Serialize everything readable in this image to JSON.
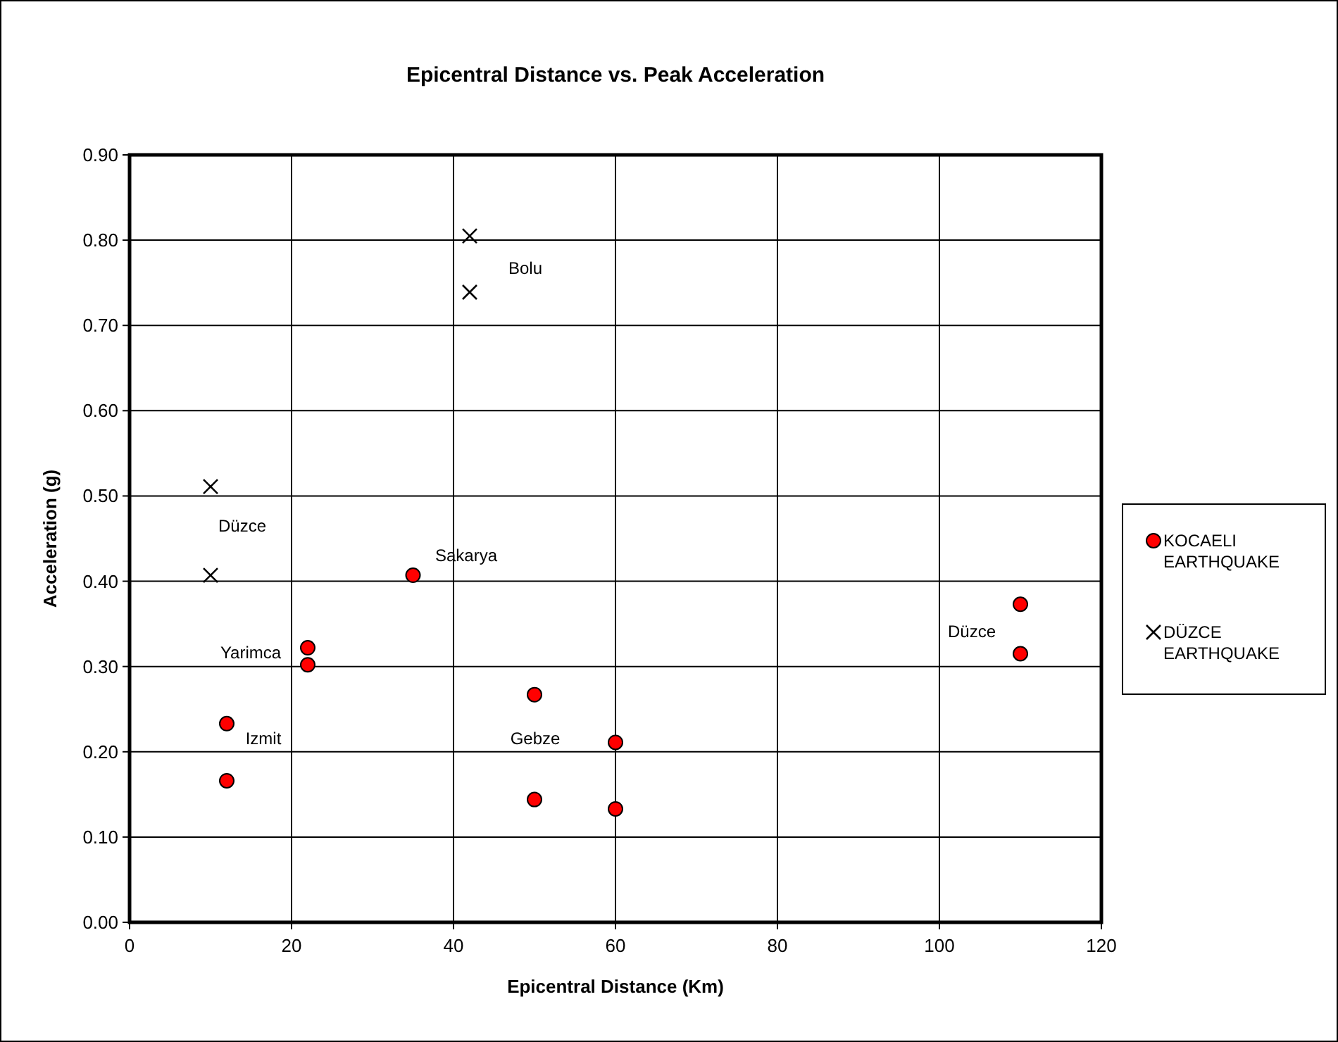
{
  "chart_data": {
    "type": "scatter",
    "title": "Epicentral Distance vs. Peak Acceleration",
    "xlabel": "Epicentral Distance (Km)",
    "ylabel": "Acceleration (g)",
    "series": [
      {
        "name": "KOCAELI EARTHQUAKE",
        "color": "#ff0000",
        "marker": "circle",
        "x": [
          12,
          12,
          22,
          22,
          35,
          50,
          50,
          60,
          60,
          110,
          110
        ],
        "values": [
          0.233,
          0.166,
          0.322,
          0.302,
          0.407,
          0.267,
          0.144,
          0.211,
          0.133,
          0.373,
          0.315
        ]
      },
      {
        "name": "DÜZCE EARTHQUAKE",
        "color": "#000000",
        "marker": "cross",
        "x": [
          10,
          10,
          42,
          42
        ],
        "values": [
          0.511,
          0.407,
          0.805,
          0.739
        ]
      }
    ],
    "xlim": [
      0,
      120
    ],
    "xticks": [
      0,
      20,
      40,
      60,
      80,
      100,
      120
    ],
    "ylim": [
      0,
      0.9
    ],
    "yticks": [
      {
        "value": 0,
        "label": "0.00"
      },
      {
        "value": 0.1,
        "label": "0.10"
      },
      {
        "value": 0.2,
        "label": "0.20"
      },
      {
        "value": 0.3,
        "label": "0.30"
      },
      {
        "value": 0.4,
        "label": "0.40"
      },
      {
        "value": 0.5,
        "label": "0.50"
      },
      {
        "value": 0.6,
        "label": "0.60"
      },
      {
        "value": 0.7,
        "label": "0.70"
      },
      {
        "value": 0.8,
        "label": "0.80"
      },
      {
        "value": 0.9,
        "label": "0.90"
      }
    ],
    "grid": true,
    "legend": "right",
    "annotations": [
      "Bolu",
      "Düzce",
      "Sakarya",
      "Yarimca",
      "Izmit",
      "Gebze",
      "Düzce"
    ]
  }
}
